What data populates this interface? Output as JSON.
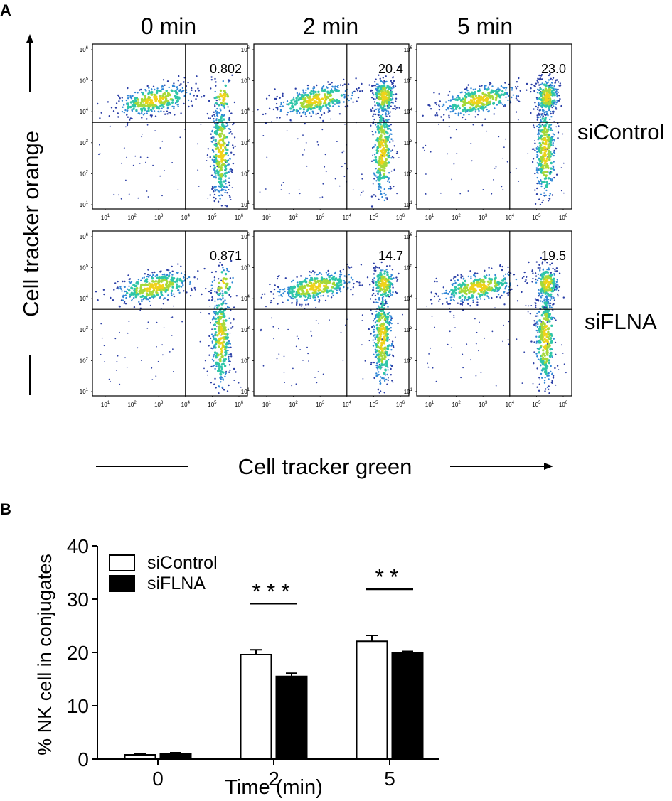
{
  "panel_a": {
    "label": "A",
    "columns": [
      "0 min",
      "2 min",
      "5 min"
    ],
    "rows": [
      "siControl",
      "siFLNA"
    ],
    "y_axis_label": "Cell tracker orange",
    "x_axis_label": "Cell tracker green",
    "tick_exponents": [
      "1",
      "2",
      "3",
      "4",
      "5",
      "6"
    ],
    "tick_base": "10",
    "quadrant_values": [
      [
        "0.802",
        "20.4",
        "23.0"
      ],
      [
        "0.871",
        "14.7",
        "19.5"
      ]
    ]
  },
  "colors": {
    "bar_sicontrol_fill": "#ffffff",
    "bar_siflna_fill": "#000000",
    "density": [
      "#2b3fa6",
      "#2f86d6",
      "#2fc6a8",
      "#a6d93a",
      "#f0d21a"
    ]
  },
  "chart_data": [
    {
      "type": "scatter",
      "subtype": "flow-cytometry-density-grid",
      "title": "",
      "xlabel": "Cell tracker green",
      "ylabel": "Cell tracker orange",
      "xscale": "log",
      "yscale": "log",
      "xlim": [
        10,
        1000000
      ],
      "ylim": [
        10,
        1000000
      ],
      "columns": [
        "0 min",
        "2 min",
        "5 min"
      ],
      "rows": [
        "siControl",
        "siFLNA"
      ],
      "quadrant_values": [
        [
          0.802,
          20.4,
          23.0
        ],
        [
          0.871,
          14.7,
          19.5
        ]
      ]
    },
    {
      "type": "bar",
      "label": "B",
      "title": "",
      "xlabel": "Time (min)",
      "ylabel": "% NK cell in conjugates",
      "categories": [
        "0",
        "2",
        "5"
      ],
      "ylim": [
        0,
        40
      ],
      "yticks": [
        "0",
        "10",
        "20",
        "30",
        "40"
      ],
      "series": [
        {
          "name": "siControl",
          "values": [
            0.8,
            19.6,
            22.1
          ],
          "errors": [
            0.2,
            0.9,
            1.1
          ]
        },
        {
          "name": "siFLNA",
          "values": [
            1.0,
            15.5,
            19.9
          ],
          "errors": [
            0.2,
            0.6,
            0.3
          ]
        }
      ],
      "legend_position": "top-left",
      "significance": [
        {
          "category": "2",
          "label": "***"
        },
        {
          "category": "5",
          "label": "**"
        }
      ]
    }
  ]
}
